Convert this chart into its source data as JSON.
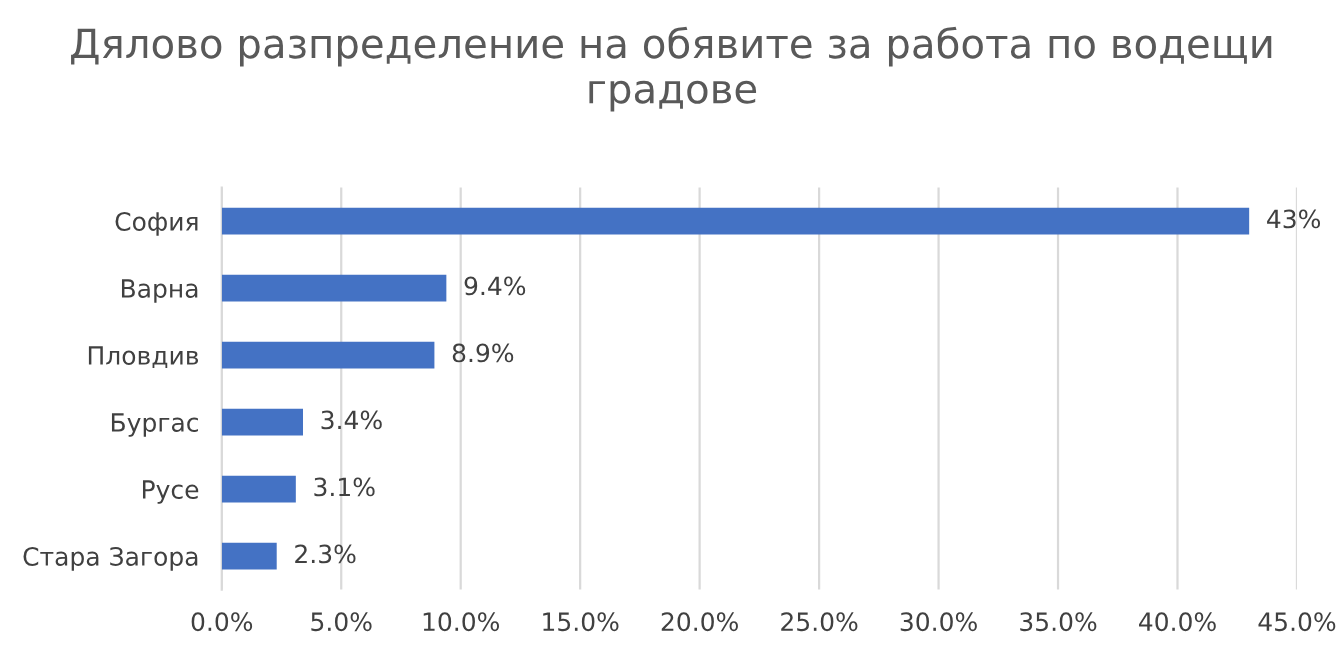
{
  "chart_data": {
    "type": "bar",
    "orientation": "horizontal",
    "title": "Дялово разпределение на обявите за работа по водещи градове",
    "categories": [
      "София",
      "Варна",
      "Пловдив",
      "Бургас",
      "Русе",
      "Стара Загора"
    ],
    "values": [
      43,
      9.4,
      8.9,
      3.4,
      3.1,
      2.3
    ],
    "value_labels": [
      "43%",
      "9.4%",
      "8.9%",
      "3.4%",
      "3.1%",
      "2.3%"
    ],
    "color": "#4472c4",
    "xlim": [
      0,
      45
    ],
    "xticks": [
      {
        "value": 0,
        "label": "0.0%"
      },
      {
        "value": 5,
        "label": "5.0%"
      },
      {
        "value": 10,
        "label": "10.0%"
      },
      {
        "value": 15,
        "label": "15.0%"
      },
      {
        "value": 20,
        "label": "20.0%"
      },
      {
        "value": 25,
        "label": "25.0%"
      },
      {
        "value": 30,
        "label": "30.0%"
      },
      {
        "value": 35,
        "label": "35.0%"
      },
      {
        "value": 40,
        "label": "40.0%"
      },
      {
        "value": 45,
        "label": "45.0%"
      }
    ],
    "grid": "x"
  }
}
